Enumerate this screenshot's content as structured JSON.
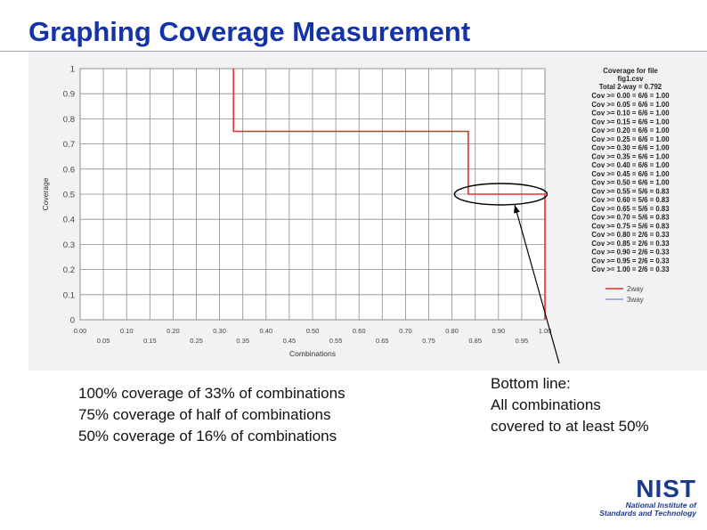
{
  "slide": {
    "title": "Graphing Coverage Measurement",
    "bullets": [
      "100% coverage of 33% of combinations",
      "75% coverage of half of combinations",
      "50% coverage of 16% of combinations"
    ],
    "bottom_line": [
      "Bottom line:",
      "All combinations",
      "covered to at least 50%"
    ],
    "logo": {
      "word": "NIST",
      "line1": "National Institute of",
      "line2": "Standards and Technology"
    }
  },
  "chart_data": {
    "type": "line",
    "xlabel": "Combinations",
    "ylabel": "Coverage",
    "xlim": [
      0,
      1
    ],
    "ylim": [
      0,
      1
    ],
    "grid": true,
    "x_ticks_top": [
      "0.00",
      "0.10",
      "0.20",
      "0.30",
      "0.40",
      "0.50",
      "0.60",
      "0.70",
      "0.80",
      "0.90",
      "1.00"
    ],
    "x_ticks_bottom": [
      "0.05",
      "0.15",
      "0.25",
      "0.35",
      "0.45",
      "0.55",
      "0.65",
      "0.75",
      "0.85",
      "0.95"
    ],
    "y_ticks": [
      "0",
      "0.1",
      "0.2",
      "0.3",
      "0.4",
      "0.5",
      "0.6",
      "0.7",
      "0.8",
      "0.9",
      "1"
    ],
    "series": [
      {
        "name": "2way",
        "color": "#ee2b2b",
        "points": [
          [
            0.33,
            1.0
          ],
          [
            0.33,
            0.75
          ],
          [
            0.835,
            0.75
          ],
          [
            0.835,
            0.5
          ],
          [
            1.0,
            0.5
          ],
          [
            1.0,
            0.0
          ]
        ]
      },
      {
        "name": "3way",
        "color": "#8aa0d8",
        "points": []
      }
    ],
    "legend_position": "right",
    "info_panel": {
      "title": "Coverage for file",
      "file": "fig1.csv",
      "total": "Total 2-way = 0.792",
      "rows": [
        "Cov >= 0.00 = 6/6 = 1.00",
        "Cov >= 0.05 = 6/6 = 1.00",
        "Cov >= 0.10 = 6/6 = 1.00",
        "Cov >= 0.15 = 6/6 = 1.00",
        "Cov >= 0.20 = 6/6 = 1.00",
        "Cov >= 0.25 = 6/6 = 1.00",
        "Cov >= 0.30 = 6/6 = 1.00",
        "Cov >= 0.35 = 6/6 = 1.00",
        "Cov >= 0.40 = 6/6 = 1.00",
        "Cov >= 0.45 = 6/6 = 1.00",
        "Cov >= 0.50 = 6/6 = 1.00",
        "Cov >= 0.55 = 5/6 = 0.83",
        "Cov >= 0.60 = 5/6 = 0.83",
        "Cov >= 0.65 = 5/6 = 0.83",
        "Cov >= 0.70 = 5/6 = 0.83",
        "Cov >= 0.75 = 5/6 = 0.83",
        "Cov >= 0.80 = 2/6 = 0.33",
        "Cov >= 0.85 = 2/6 = 0.33",
        "Cov >= 0.90 = 2/6 = 0.33",
        "Cov >= 0.95 = 2/6 = 0.33",
        "Cov >= 1.00 = 2/6 = 0.33"
      ]
    },
    "annotation": {
      "shape": "ellipse",
      "center": [
        0.905,
        0.5
      ],
      "arrow_from_text": "Bottom line"
    }
  }
}
